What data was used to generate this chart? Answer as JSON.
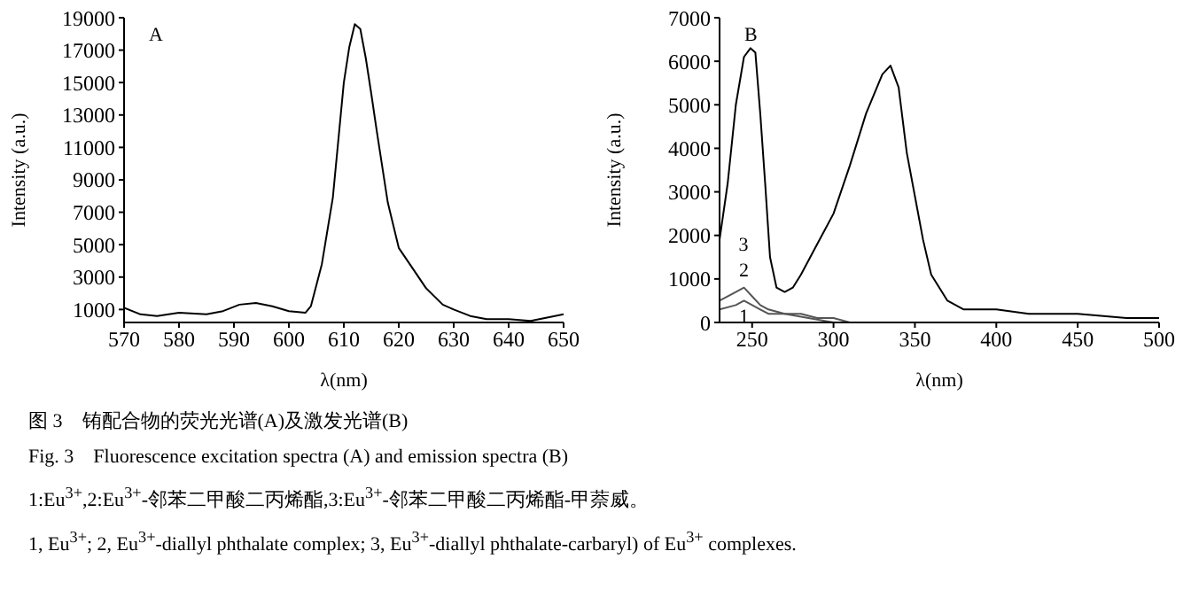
{
  "chart_data": [
    {
      "type": "line",
      "xlabel": "λ(nm)",
      "ylabel": "Intensity (a.u.)",
      "xlim": [
        570,
        650
      ],
      "xticks": [
        570,
        580,
        590,
        600,
        610,
        620,
        630,
        640,
        650
      ],
      "ylim": [
        200,
        19000
      ],
      "yticks": [
        1000,
        3000,
        5000,
        7000,
        9000,
        11000,
        13000,
        15000,
        17000,
        19000
      ],
      "annotations": [
        "A"
      ],
      "series": [
        {
          "color": "#000000",
          "x": [
            570,
            573,
            576,
            580,
            585,
            588,
            591,
            594,
            597,
            600,
            603,
            604,
            606,
            608,
            610,
            611,
            612,
            613,
            614,
            615,
            616,
            618,
            620,
            622,
            625,
            628,
            630,
            633,
            636,
            640,
            644,
            647,
            650
          ],
          "values": [
            1100,
            700,
            600,
            800,
            700,
            900,
            1300,
            1400,
            1200,
            900,
            800,
            1200,
            3800,
            7900,
            15000,
            17200,
            18600,
            18300,
            16500,
            14300,
            12000,
            7600,
            4800,
            3800,
            2300,
            1300,
            1000,
            600,
            400,
            400,
            300,
            500,
            700
          ]
        }
      ]
    },
    {
      "type": "line",
      "xlabel": "λ(nm)",
      "ylabel": "Intensity (a.u.)",
      "xlim": [
        230,
        500
      ],
      "xticks": [
        250,
        300,
        350,
        400,
        450,
        500
      ],
      "ylim": [
        0,
        7000
      ],
      "yticks": [
        0,
        1000,
        2000,
        3000,
        4000,
        5000,
        6000,
        7000
      ],
      "annotations": [
        "B"
      ],
      "series": [
        {
          "name": "3",
          "color": "#000000",
          "x": [
            230,
            235,
            240,
            245,
            249,
            252,
            255,
            258,
            261,
            265,
            270,
            275,
            280,
            290,
            300,
            310,
            320,
            330,
            335,
            340,
            345,
            350,
            355,
            360,
            370,
            380,
            400,
            420,
            450,
            480,
            500
          ],
          "values": [
            1900,
            3200,
            5000,
            6100,
            6300,
            6200,
            4800,
            3200,
            1500,
            800,
            700,
            800,
            1100,
            1800,
            2500,
            3600,
            4800,
            5700,
            5900,
            5400,
            3900,
            2900,
            1900,
            1100,
            500,
            300,
            300,
            200,
            200,
            100,
            100
          ]
        },
        {
          "name": "2",
          "color": "#555555",
          "x": [
            230,
            240,
            245,
            250,
            255,
            260,
            270,
            280,
            290,
            300,
            310,
            320
          ],
          "values": [
            500,
            700,
            800,
            600,
            400,
            300,
            200,
            200,
            100,
            100,
            0,
            0
          ]
        },
        {
          "name": "1",
          "color": "#555555",
          "x": [
            230,
            240,
            245,
            250,
            255,
            260,
            270,
            300,
            320
          ],
          "values": [
            300,
            400,
            500,
            400,
            300,
            200,
            200,
            0,
            0
          ]
        }
      ]
    },
    {
      "type": "other",
      "annotations": [
        "图 3　铕配合物的荧光光谱(A)及激发光谱(B)",
        "Fig. 3　Fluorescence excitation spectra (A) and emission spectra (B)",
        "1:Eu$^{3+}$,2:Eu$^{3+}$-邻苯二甲酸二丙烯酯,3:Eu$^{3+}$-邻苯二甲酸二丙烯酯-甲萘威。",
        "1, Eu$^{3+}$; 2, Eu$^{3+}$-diallyl phthalate complex; 3, Eu$^{3+}$-diallyl phthalate-carbaryl) of Eu$^{3+}$ complexes."
      ]
    }
  ]
}
